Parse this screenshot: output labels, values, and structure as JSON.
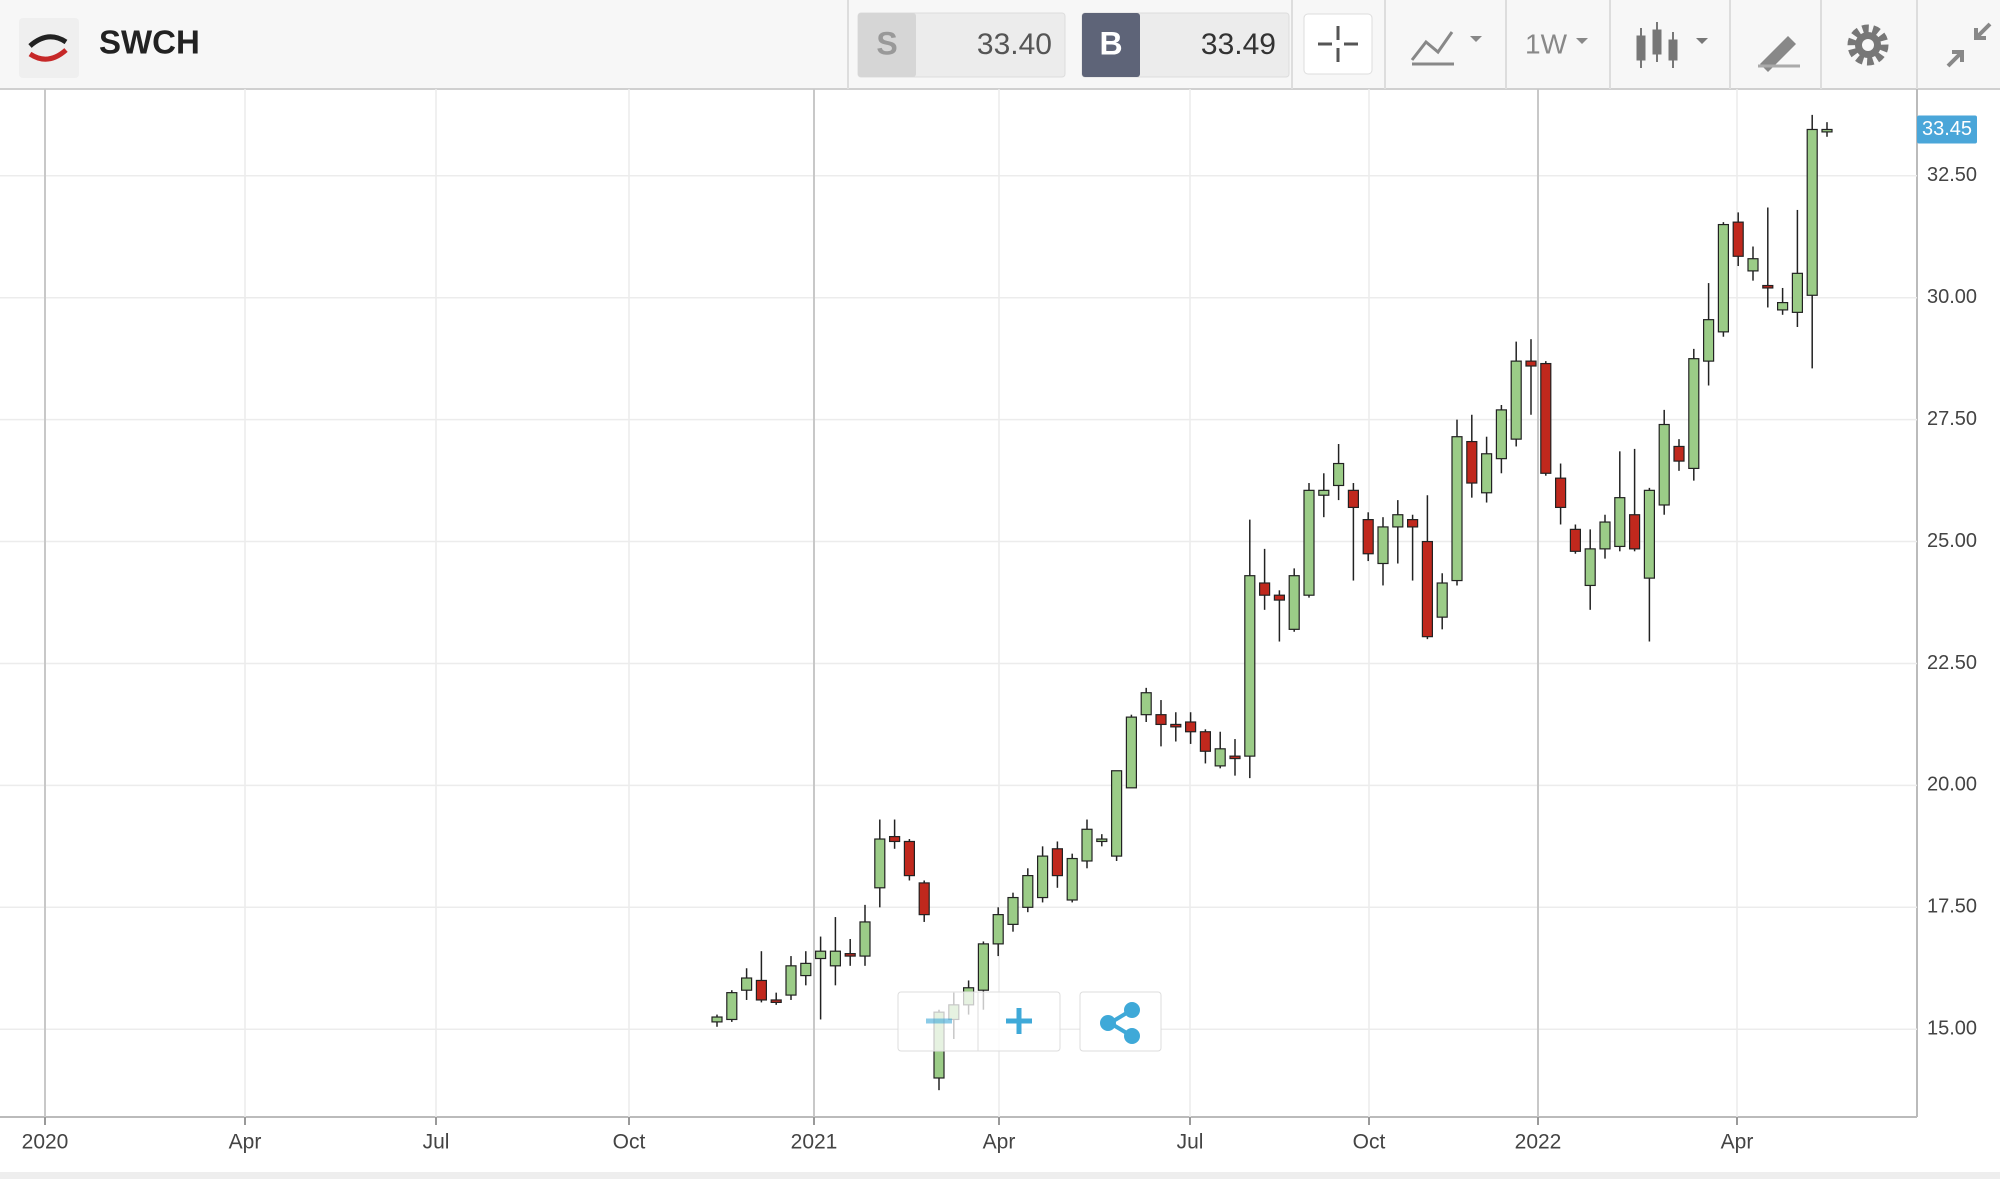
{
  "header": {
    "symbol": "SWCH",
    "sell": {
      "label": "S",
      "price": "33.40"
    },
    "buy": {
      "label": "B",
      "price": "33.49"
    },
    "interval": "1W"
  },
  "chart_data": {
    "type": "candlestick",
    "open": [
      15.15,
      15.2,
      15.8,
      16.0,
      15.6,
      15.7,
      16.1,
      16.45,
      16.3,
      16.55,
      16.5,
      17.9,
      18.95,
      18.85,
      18.0,
      14.0,
      15.2,
      15.5,
      15.8,
      16.75,
      17.15,
      17.5,
      17.7,
      18.7,
      17.65,
      18.45,
      18.85,
      18.55,
      19.95,
      21.45,
      21.45,
      21.25,
      21.3,
      21.1,
      20.4,
      20.6,
      20.6,
      24.15,
      23.9,
      23.2,
      23.9,
      25.95,
      26.15,
      26.05,
      25.45,
      24.55,
      25.3,
      25.45,
      25.0,
      23.45,
      24.2,
      27.05,
      26.0,
      26.7,
      27.1,
      28.7,
      28.65,
      26.3,
      25.25,
      24.1,
      24.85,
      24.9,
      25.55,
      24.25,
      25.75,
      26.95,
      26.5,
      28.7,
      29.3,
      31.55,
      30.55,
      30.25,
      29.75,
      29.7,
      30.05,
      33.4
    ],
    "high": [
      15.3,
      15.8,
      16.25,
      16.6,
      15.75,
      16.5,
      16.6,
      16.9,
      17.3,
      16.85,
      17.55,
      19.3,
      19.3,
      18.9,
      18.05,
      15.4,
      15.75,
      16.0,
      16.8,
      17.5,
      17.8,
      18.3,
      18.75,
      18.85,
      18.6,
      19.3,
      19.0,
      20.3,
      21.45,
      22.0,
      21.75,
      21.5,
      21.5,
      21.15,
      21.1,
      20.95,
      25.45,
      24.85,
      24.0,
      24.45,
      26.2,
      26.4,
      27.0,
      26.2,
      25.6,
      25.5,
      25.85,
      25.55,
      25.95,
      24.35,
      27.5,
      27.6,
      27.15,
      27.8,
      29.1,
      29.15,
      28.7,
      26.6,
      25.35,
      25.25,
      25.55,
      26.85,
      26.9,
      26.1,
      27.7,
      27.1,
      28.95,
      30.3,
      31.55,
      31.75,
      31.05,
      31.85,
      30.2,
      31.8,
      33.75,
      33.6
    ],
    "low": [
      15.05,
      15.15,
      15.6,
      15.55,
      15.5,
      15.6,
      15.9,
      15.2,
      15.9,
      16.3,
      16.3,
      17.5,
      18.7,
      18.05,
      17.2,
      13.75,
      14.8,
      15.3,
      15.4,
      16.5,
      17.0,
      17.4,
      17.6,
      17.9,
      17.6,
      18.3,
      18.75,
      18.45,
      19.95,
      21.3,
      20.8,
      20.9,
      20.85,
      20.45,
      20.35,
      20.2,
      20.15,
      23.6,
      22.95,
      23.15,
      23.85,
      25.5,
      25.85,
      24.2,
      24.6,
      24.1,
      24.55,
      24.2,
      23.0,
      23.2,
      24.1,
      25.9,
      25.8,
      26.4,
      26.95,
      27.6,
      26.35,
      25.35,
      24.75,
      23.6,
      24.65,
      24.8,
      24.8,
      22.95,
      25.55,
      26.45,
      26.25,
      28.2,
      29.2,
      30.65,
      30.35,
      29.8,
      29.65,
      29.4,
      28.55,
      33.3
    ],
    "close": [
      15.25,
      15.75,
      16.05,
      15.6,
      15.55,
      16.3,
      16.35,
      16.6,
      16.6,
      16.5,
      17.2,
      18.9,
      18.85,
      18.15,
      17.35,
      15.35,
      15.5,
      15.85,
      16.75,
      17.35,
      17.7,
      18.15,
      18.55,
      18.15,
      18.5,
      19.1,
      18.9,
      20.3,
      21.4,
      21.9,
      21.25,
      21.2,
      21.1,
      20.7,
      20.75,
      20.55,
      24.3,
      23.9,
      23.8,
      24.3,
      26.05,
      26.05,
      26.6,
      25.7,
      24.75,
      25.3,
      25.55,
      25.3,
      23.05,
      24.15,
      27.15,
      26.2,
      26.8,
      27.7,
      28.7,
      28.6,
      26.4,
      25.7,
      24.8,
      24.85,
      25.4,
      25.9,
      24.85,
      26.05,
      27.4,
      26.65,
      28.75,
      29.55,
      31.5,
      30.85,
      30.8,
      30.2,
      29.9,
      30.5,
      33.45,
      33.45
    ],
    "up_color": "#9bcc87",
    "down_color": "#c0281d",
    "ylim": [
      13.2,
      34.28
    ],
    "yticks": [
      {
        "value": 15,
        "label": "15.00"
      },
      {
        "value": 17.5,
        "label": "17.50"
      },
      {
        "value": 20,
        "label": "20.00"
      },
      {
        "value": 22.5,
        "label": "22.50"
      },
      {
        "value": 25,
        "label": "25.00"
      },
      {
        "value": 27.5,
        "label": "27.50"
      },
      {
        "value": 30,
        "label": "30.00"
      },
      {
        "value": 32.5,
        "label": "32.50"
      }
    ],
    "xticks": [
      "2020",
      "Apr",
      "Jul",
      "Oct",
      "2021",
      "Apr",
      "Jul",
      "Oct",
      "2022",
      "Apr"
    ],
    "grid": true,
    "last_price": 33.45
  }
}
